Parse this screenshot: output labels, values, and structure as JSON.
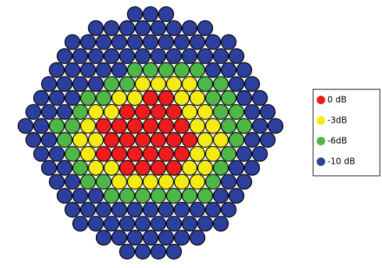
{
  "legend": {
    "items": [
      {
        "label": "0 dB",
        "color": "#ee1c1c"
      },
      {
        "label": "-3dB",
        "color": "#f4ea14"
      },
      {
        "label": "-6dB",
        "color": "#4db848"
      },
      {
        "label": "-10 dB",
        "color": "#2d3f9c"
      }
    ]
  },
  "grid": {
    "rows": [
      [
        3,
        3,
        3
      ],
      [
        3,
        3,
        3,
        3,
        3,
        3,
        3,
        3
      ],
      [
        3,
        3,
        3,
        3,
        3,
        3,
        3,
        3,
        3,
        3,
        3
      ],
      [
        3,
        3,
        3,
        3,
        3,
        3,
        3,
        3,
        3,
        3,
        3,
        3
      ],
      [
        3,
        3,
        3,
        3,
        3,
        2,
        2,
        2,
        2,
        2,
        3,
        3,
        3
      ],
      [
        3,
        3,
        3,
        3,
        2,
        2,
        1,
        1,
        1,
        1,
        2,
        2,
        3,
        3
      ],
      [
        3,
        3,
        3,
        2,
        2,
        1,
        1,
        0,
        0,
        1,
        1,
        2,
        2,
        3,
        3
      ],
      [
        3,
        3,
        3,
        2,
        1,
        1,
        0,
        0,
        0,
        0,
        1,
        1,
        2,
        2,
        3,
        3
      ],
      [
        3,
        3,
        2,
        2,
        1,
        0,
        0,
        0,
        0,
        0,
        0,
        1,
        1,
        2,
        2,
        3,
        3
      ],
      [
        3,
        3,
        2,
        1,
        1,
        0,
        0,
        0,
        0,
        0,
        0,
        1,
        1,
        2,
        3,
        3
      ],
      [
        3,
        3,
        2,
        1,
        0,
        0,
        0,
        0,
        0,
        0,
        1,
        1,
        2,
        3,
        3
      ],
      [
        3,
        3,
        2,
        1,
        1,
        0,
        0,
        0,
        0,
        1,
        1,
        2,
        3,
        3
      ],
      [
        3,
        3,
        2,
        2,
        1,
        1,
        1,
        1,
        1,
        1,
        2,
        3,
        3
      ],
      [
        3,
        3,
        3,
        2,
        2,
        2,
        2,
        2,
        2,
        2,
        3,
        3
      ],
      [
        3,
        3,
        3,
        3,
        3,
        3,
        3,
        3,
        3,
        3,
        3
      ],
      [
        3,
        3,
        3,
        3,
        3,
        3,
        3,
        3,
        3,
        3
      ],
      [
        3,
        3,
        3,
        3,
        3,
        3,
        3
      ],
      [
        3,
        3,
        3,
        3
      ]
    ]
  }
}
